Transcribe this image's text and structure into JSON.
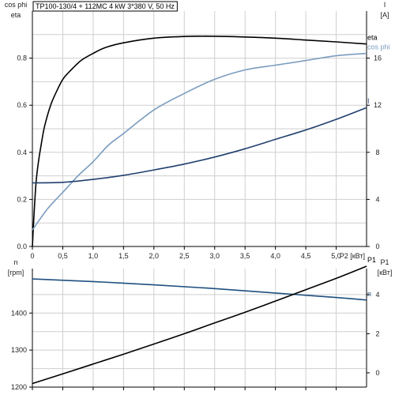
{
  "chart_data": [
    {
      "type": "line",
      "title": "TP100-130/4 + 112MC   4 kW   3*380 V, 50 Hz",
      "xlabel": "P2 [кВт]",
      "x_ticks": [
        "0",
        "0,5",
        "1,0",
        "1,5",
        "2,0",
        "2,5",
        "3,0",
        "3,5",
        "4,0",
        "4,5",
        "5,0"
      ],
      "xlim": [
        0,
        5.5
      ],
      "y_left": {
        "label_lines": [
          "cos phi",
          "eta"
        ],
        "ticks": [
          "0.0",
          "0.2",
          "0.4",
          "0.6",
          "0.8"
        ],
        "range": [
          0,
          1.0
        ]
      },
      "y_right": {
        "label_lines": [
          "I",
          "[A]"
        ],
        "ticks": [
          "0",
          "4",
          "8",
          "12",
          "16"
        ],
        "range": [
          0,
          20
        ]
      },
      "grid": true,
      "series": [
        {
          "name": "eta",
          "axis": "left",
          "color": "#000000",
          "x": [
            0,
            0.03,
            0.06,
            0.1,
            0.15,
            0.2,
            0.3,
            0.4,
            0.5,
            0.6,
            0.8,
            1.0,
            1.2,
            1.5,
            2.0,
            2.5,
            3.0,
            3.5,
            4.0,
            4.5,
            5.0,
            5.5
          ],
          "y": [
            0.0,
            0.15,
            0.27,
            0.36,
            0.44,
            0.51,
            0.6,
            0.66,
            0.71,
            0.74,
            0.79,
            0.82,
            0.845,
            0.865,
            0.885,
            0.892,
            0.893,
            0.89,
            0.885,
            0.877,
            0.869,
            0.86
          ]
        },
        {
          "name": "cos phi",
          "axis": "left",
          "color": "#7a9cbf",
          "x": [
            0,
            0.25,
            0.5,
            0.75,
            1.0,
            1.25,
            1.5,
            2.0,
            2.5,
            3.0,
            3.5,
            4.0,
            4.5,
            5.0,
            5.5
          ],
          "y": [
            0.07,
            0.16,
            0.23,
            0.3,
            0.36,
            0.43,
            0.48,
            0.58,
            0.65,
            0.71,
            0.75,
            0.77,
            0.79,
            0.81,
            0.82
          ]
        },
        {
          "name": "I",
          "axis": "right",
          "color": "#1f3f6e",
          "x": [
            0,
            0.5,
            1.0,
            1.5,
            2.0,
            2.5,
            3.0,
            3.5,
            4.0,
            4.5,
            5.0,
            5.5
          ],
          "y": [
            5.4,
            5.45,
            5.7,
            6.05,
            6.5,
            7.0,
            7.6,
            8.3,
            9.1,
            9.9,
            10.8,
            11.8
          ]
        }
      ]
    },
    {
      "type": "line",
      "x_ticks": [],
      "xlim": [
        0,
        5.5
      ],
      "y_left": {
        "label_lines": [
          "n",
          "[rpm]"
        ],
        "ticks": [
          "1200",
          "1300",
          "1400"
        ],
        "range": [
          1200,
          1520
        ]
      },
      "y_right": {
        "label_lines": [
          "P1",
          "[кВт]"
        ],
        "ticks": [
          "0",
          "2",
          "4"
        ],
        "range": [
          -0.73,
          5.33
        ]
      },
      "grid": true,
      "series": [
        {
          "name": "n",
          "axis": "left",
          "color": "#1f4f80",
          "x": [
            0,
            1.0,
            2.0,
            3.0,
            4.0,
            5.0,
            5.5
          ],
          "y": [
            1492,
            1485,
            1476,
            1466,
            1454,
            1442,
            1435
          ]
        },
        {
          "name": "P1",
          "axis": "right",
          "color": "#000000",
          "x": [
            0,
            0.5,
            1.0,
            1.5,
            2.0,
            2.5,
            3.0,
            3.5,
            4.0,
            4.5,
            5.0,
            5.5
          ],
          "y": [
            -0.55,
            -0.05,
            0.45,
            0.95,
            1.47,
            2.0,
            2.55,
            3.1,
            3.67,
            4.25,
            4.83,
            5.45
          ]
        }
      ]
    }
  ]
}
